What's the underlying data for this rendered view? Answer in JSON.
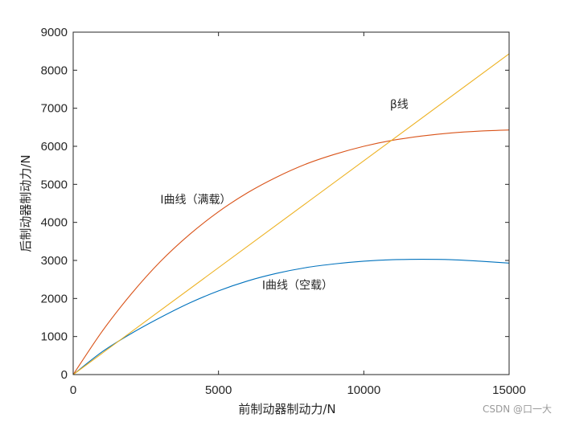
{
  "chart_data": {
    "type": "line",
    "xlabel": "前制动器制动力/N",
    "ylabel": "后制动器制动力/N",
    "xlim": [
      0,
      15000
    ],
    "ylim": [
      0,
      9000
    ],
    "xticks": [
      0,
      5000,
      10000,
      15000
    ],
    "yticks": [
      0,
      1000,
      2000,
      3000,
      4000,
      5000,
      6000,
      7000,
      8000,
      9000
    ],
    "grid": false,
    "series": [
      {
        "name": "I曲线（满载）",
        "color": "#d95319",
        "x": [
          0,
          1000,
          2000,
          3000,
          4000,
          5000,
          6000,
          7000,
          8000,
          9000,
          10000,
          11000,
          12000,
          13000,
          14000,
          15000
        ],
        "y": [
          0,
          1140,
          2120,
          2970,
          3680,
          4280,
          4780,
          5190,
          5530,
          5790,
          6000,
          6160,
          6270,
          6350,
          6400,
          6430
        ]
      },
      {
        "name": "I曲线（空载）",
        "color": "#0072bd",
        "x": [
          0,
          1000,
          2000,
          3000,
          4000,
          5000,
          6000,
          7000,
          8000,
          9000,
          10000,
          11000,
          12000,
          13000,
          14000,
          15000
        ],
        "y": [
          0,
          600,
          1080,
          1500,
          1880,
          2200,
          2460,
          2660,
          2810,
          2910,
          2980,
          3020,
          3030,
          3020,
          2980,
          2930
        ]
      },
      {
        "name": "β线",
        "color": "#edb120",
        "x": [
          0,
          15000
        ],
        "y": [
          0,
          8430
        ]
      }
    ],
    "annotations": [
      {
        "text": "β线",
        "x": 10900,
        "y": 7000
      },
      {
        "text": "I曲线（满载）",
        "x": 3000,
        "y": 4500
      },
      {
        "text": "I曲线（空载）",
        "x": 6500,
        "y": 2250
      }
    ]
  },
  "watermark": "CSDN @口一大"
}
